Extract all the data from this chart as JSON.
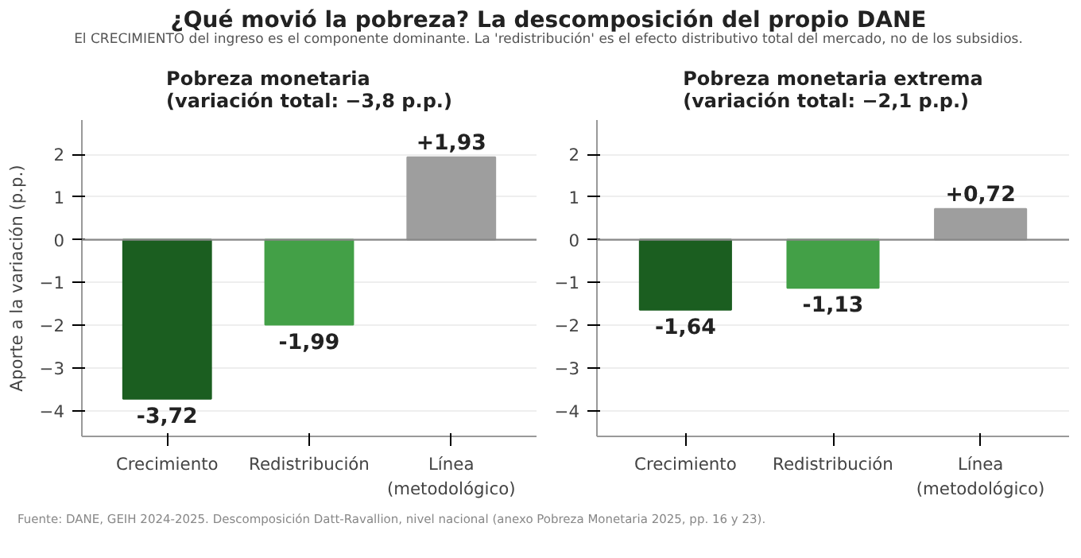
{
  "chart_data": [
    {
      "type": "bar",
      "title": "Pobreza monetaria\n(variación total: −3,8 p.p.)",
      "ylabel": "Aporte a la variación (p.p.)",
      "categories": [
        "Crecimiento",
        "Redistribución",
        "Línea\n(metodológico)"
      ],
      "values": [
        -3.72,
        -1.99,
        1.93
      ],
      "colors": [
        "#1b5e20",
        "#43a047",
        "#9e9e9e"
      ],
      "value_labels": [
        "-3,72",
        "-1,99",
        "+1,93"
      ],
      "ylim": [
        -4.6,
        2.8
      ],
      "yticks": [
        -4,
        -3,
        -2,
        -1,
        0,
        1,
        2
      ],
      "grid": "y",
      "ref_lines": [
        {
          "axis": "y",
          "value": 0,
          "color": "#888888"
        }
      ],
      "annotations": [
        "¿Qué movió la pobreza? La descomposición del propio DANE",
        "El CRECIMIENTO del ingreso es el componente dominante. La 'redistribución' es el efecto distributivo total del mercado, no de los subsidios.",
        "Fuente: DANE, GEIH 2024-2025. Descomposición Datt-Ravallion, nivel nacional (anexo Pobreza Monetaria 2025, pp. 16 y 23)."
      ]
    },
    {
      "type": "bar",
      "title": "Pobreza monetaria extrema\n(variación total: −2,1 p.p.)",
      "categories": [
        "Crecimiento",
        "Redistribución",
        "Línea\n(metodológico)"
      ],
      "values": [
        -1.64,
        -1.13,
        0.72
      ],
      "colors": [
        "#1b5e20",
        "#43a047",
        "#9e9e9e"
      ],
      "value_labels": [
        "-1,64",
        "-1,13",
        "+0,72"
      ],
      "ylim": [
        -4.6,
        2.8
      ],
      "yticks": [
        -4,
        -3,
        -2,
        -1,
        0,
        1,
        2
      ],
      "grid": "y",
      "ref_lines": [
        {
          "axis": "y",
          "value": 0,
          "color": "#888888"
        }
      ]
    }
  ]
}
